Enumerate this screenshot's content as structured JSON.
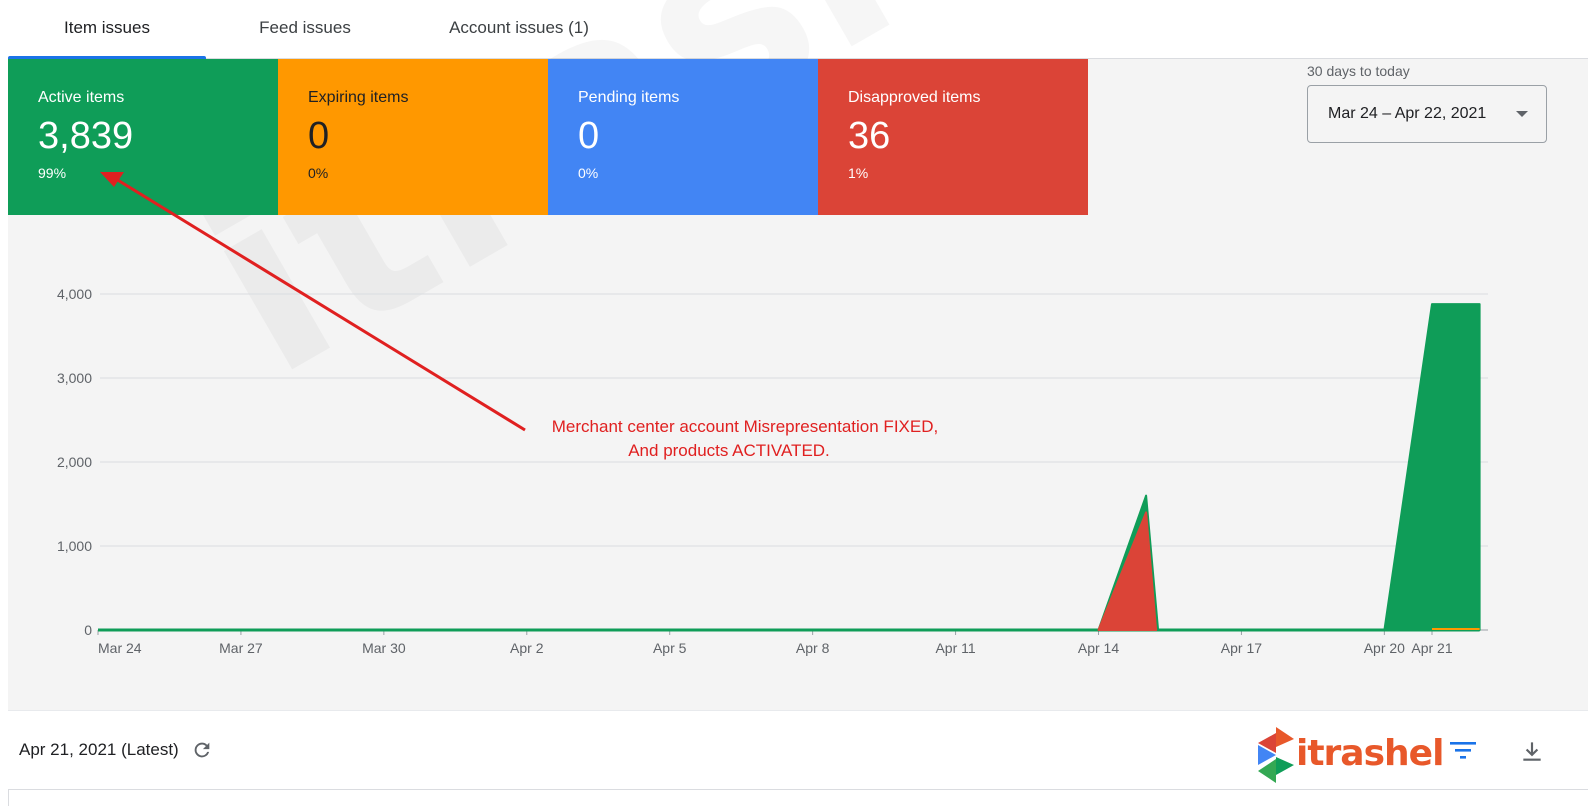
{
  "tabs": [
    {
      "label": "Item issues",
      "active": true
    },
    {
      "label": "Feed issues",
      "active": false
    },
    {
      "label": "Account issues (1)",
      "active": false
    }
  ],
  "cards": [
    {
      "title": "Active items",
      "value": "3,839",
      "pct": "99%",
      "color": "#0f9d58"
    },
    {
      "title": "Expiring items",
      "value": "0",
      "pct": "0%",
      "color": "#ff9800"
    },
    {
      "title": "Pending items",
      "value": "0",
      "pct": "0%",
      "color": "#4285f4"
    },
    {
      "title": "Disapproved items",
      "value": "36",
      "pct": "1%",
      "color": "#db4437"
    }
  ],
  "date_range": {
    "label": "30 days to today",
    "value": "Mar 24 – Apr 22, 2021"
  },
  "annotation": {
    "line1": "Merchant center account Misrepresentation FIXED,",
    "line2": "And products ACTIVATED.",
    "color": "#e02020"
  },
  "watermark": "itrashel",
  "chart_data": {
    "type": "area",
    "y_ticks": [
      "4,000",
      "3,000",
      "2,000",
      "1,000",
      "0"
    ],
    "ylim": [
      0,
      4000
    ],
    "x_ticks": [
      "Mar 24",
      "Mar 27",
      "Mar 30",
      "Apr 2",
      "Apr 5",
      "Apr 8",
      "Apr 11",
      "Apr 14",
      "Apr 17",
      "Apr 20",
      "Apr 21"
    ],
    "series": [
      {
        "color": "#0f9d58",
        "points": [
          [
            "Apr 14",
            0
          ],
          [
            "Apr 15",
            1600
          ],
          [
            "Apr 15",
            0
          ],
          [
            "Apr 20",
            0
          ],
          [
            "Apr 21",
            3880
          ],
          [
            "Apr 22",
            3880
          ]
        ]
      },
      {
        "color": "#db4437",
        "points": [
          [
            "Apr 14",
            0
          ],
          [
            "Apr 15",
            1400
          ],
          [
            "Apr 15",
            0
          ]
        ]
      },
      {
        "color": "#ff9800",
        "points": [
          [
            "Apr 21",
            30
          ],
          [
            "Apr 22",
            30
          ]
        ]
      }
    ]
  },
  "bottom": {
    "latest": "Apr 21, 2021 (Latest)",
    "logo_text": "itrashel"
  },
  "icons": {
    "refresh": "refresh-icon",
    "filter": "filter-icon",
    "download": "download-icon"
  }
}
